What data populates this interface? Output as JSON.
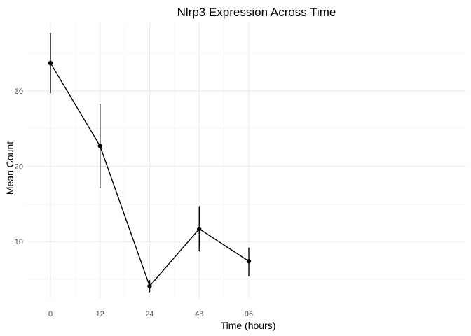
{
  "chart_data": {
    "type": "line",
    "title": "Nlrp3 Expression Across Time",
    "xlabel": "Time (hours)",
    "ylabel": "Mean Count",
    "x_ticks": [
      0,
      12,
      24,
      48,
      96
    ],
    "y_ticks": [
      10,
      20,
      30
    ],
    "y_minor": [
      5,
      15,
      25,
      35
    ],
    "x_minor": [
      6,
      18,
      36,
      72
    ],
    "ylim": [
      2.5,
      39.0
    ],
    "grid": true,
    "legend": "none",
    "series": [
      {
        "points": [
          {
            "x": 0,
            "y": 33.7,
            "ymin": 29.7,
            "ymax": 37.7
          },
          {
            "x": 12,
            "y": 22.7,
            "ymin": 17.1,
            "ymax": 28.3
          },
          {
            "x": 24,
            "y": 4.1,
            "ymin": 3.3,
            "ymax": 4.9
          },
          {
            "x": 48,
            "y": 11.7,
            "ymin": 8.7,
            "ymax": 14.7
          },
          {
            "x": 96,
            "y": 7.4,
            "ymin": 5.4,
            "ymax": 9.2
          }
        ]
      }
    ]
  }
}
